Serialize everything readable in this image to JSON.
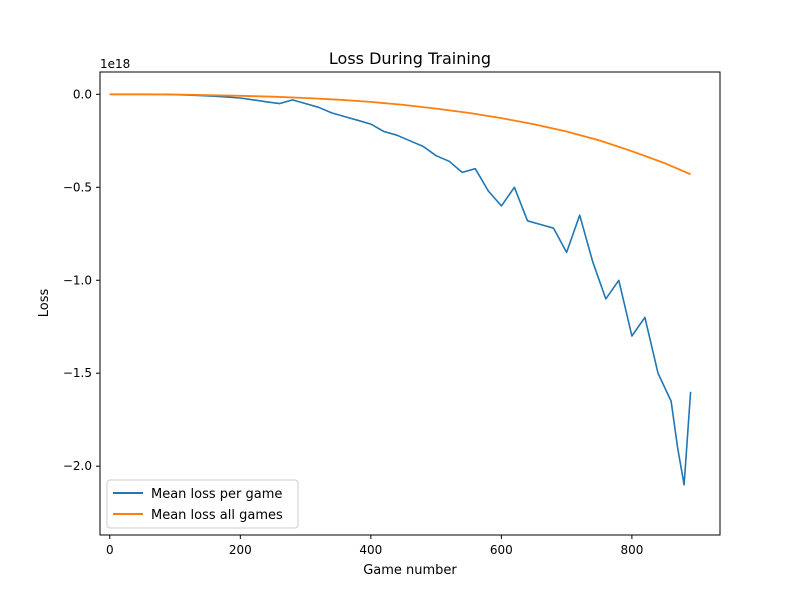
{
  "chart_data": {
    "type": "line",
    "title": "Loss During Training",
    "xlabel": "Game number",
    "ylabel": "Loss",
    "y_offset_text": "1e18",
    "xlim": [
      -15,
      935
    ],
    "ylim": [
      -2.37,
      0.12
    ],
    "y_scale_factor": 1e+18,
    "x_ticks": [
      0,
      200,
      400,
      600,
      800
    ],
    "x_tick_labels": [
      "0",
      "200",
      "400",
      "600",
      "800"
    ],
    "y_ticks": [
      0.0,
      -0.5,
      -1.0,
      -1.5,
      -2.0
    ],
    "y_tick_labels": [
      "0.0",
      "−0.5",
      "−1.0",
      "−1.5",
      "−2.0"
    ],
    "grid": false,
    "legend_position": "lower-left",
    "series": [
      {
        "name": "Mean loss per game",
        "color": "#1f77b4",
        "x": [
          0,
          20,
          40,
          60,
          80,
          100,
          120,
          140,
          160,
          180,
          200,
          220,
          240,
          260,
          280,
          300,
          320,
          340,
          360,
          380,
          400,
          420,
          440,
          460,
          480,
          500,
          520,
          540,
          560,
          580,
          600,
          620,
          640,
          660,
          680,
          700,
          720,
          740,
          760,
          780,
          800,
          820,
          840,
          860,
          870,
          880,
          890
        ],
        "values": [
          0.0,
          0.0,
          0.0,
          0.0,
          0.0,
          -0.002,
          -0.004,
          -0.007,
          -0.01,
          -0.015,
          -0.02,
          -0.03,
          -0.04,
          -0.05,
          -0.03,
          -0.05,
          -0.07,
          -0.1,
          -0.12,
          -0.14,
          -0.16,
          -0.2,
          -0.22,
          -0.25,
          -0.28,
          -0.33,
          -0.36,
          -0.42,
          -0.4,
          -0.52,
          -0.6,
          -0.5,
          -0.68,
          -0.7,
          -0.72,
          -0.85,
          -0.65,
          -0.9,
          -1.1,
          -1.0,
          -1.3,
          -1.2,
          -1.5,
          -1.65,
          -1.9,
          -2.1,
          -1.6
        ]
      },
      {
        "name": "Mean loss all games",
        "color": "#ff7f0e",
        "x": [
          0,
          50,
          100,
          150,
          200,
          250,
          300,
          350,
          400,
          450,
          500,
          550,
          600,
          650,
          700,
          750,
          800,
          850,
          890
        ],
        "values": [
          0.0,
          0.0,
          -0.001,
          -0.004,
          -0.008,
          -0.013,
          -0.02,
          -0.029,
          -0.041,
          -0.057,
          -0.077,
          -0.1,
          -0.128,
          -0.161,
          -0.2,
          -0.248,
          -0.306,
          -0.37,
          -0.43
        ]
      }
    ]
  }
}
